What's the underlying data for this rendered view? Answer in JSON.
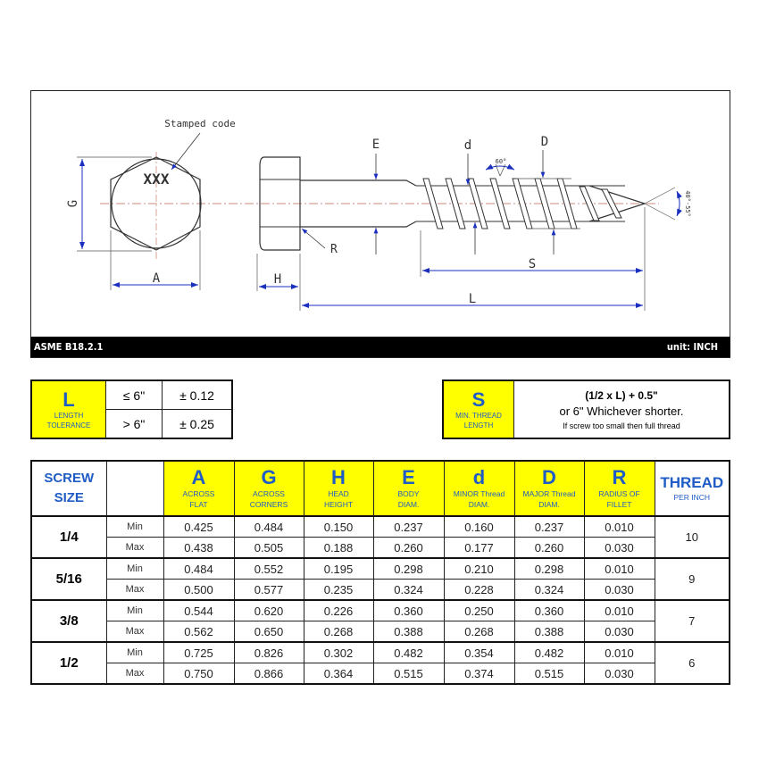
{
  "drawing": {
    "stamped_code_label": "Stamped code",
    "stamp_text": "XXX",
    "dim_labels": {
      "G": "G",
      "A": "A",
      "H": "H",
      "R": "R",
      "E": "E",
      "d": "d",
      "D": "D",
      "S": "S",
      "L": "L"
    },
    "thread_angle": "60°",
    "point_angle": "40°-55°",
    "standard": "ASME B18.2.1",
    "unit": "unit: INCH"
  },
  "length_tolerance": {
    "symbol": "L",
    "caption_line1": "LENGTH",
    "caption_line2": "TOLERANCE",
    "rows": [
      {
        "condition": "≤ 6\"",
        "tolerance": "± 0.12"
      },
      {
        "condition": "> 6\"",
        "tolerance": "± 0.25"
      }
    ]
  },
  "thread_length": {
    "symbol": "S",
    "caption_line1": "MIN. THREAD",
    "caption_line2": "LENGTH",
    "formula": "(1/2 x L) + 0.5\"",
    "line2": "or 6\" Whichever shorter.",
    "note": "If screw too small then full thread"
  },
  "spec_table": {
    "size_header_1": "SCREW",
    "size_header_2": "SIZE",
    "columns": [
      {
        "symbol": "A",
        "l1": "ACROSS",
        "l2": "FLAT"
      },
      {
        "symbol": "G",
        "l1": "ACROSS",
        "l2": "CORNERS"
      },
      {
        "symbol": "H",
        "l1": "HEAD",
        "l2": "HEIGHT"
      },
      {
        "symbol": "E",
        "l1": "BODY",
        "l2": "DIAM."
      },
      {
        "symbol": "d",
        "l1": "MINOR Thread",
        "l2": "DIAM."
      },
      {
        "symbol": "D",
        "l1": "MAJOR Thread",
        "l2": "DIAM."
      },
      {
        "symbol": "R",
        "l1": "RADIUS OF",
        "l2": "FILLET"
      }
    ],
    "thread_header": "THREAD",
    "thread_sub": "PER INCH",
    "min_label": "Min",
    "max_label": "Max",
    "rows": [
      {
        "size": "1/4",
        "min": [
          "0.425",
          "0.484",
          "0.150",
          "0.237",
          "0.160",
          "0.237",
          "0.010"
        ],
        "max": [
          "0.438",
          "0.505",
          "0.188",
          "0.260",
          "0.177",
          "0.260",
          "0.030"
        ],
        "tpi": "10"
      },
      {
        "size": "5/16",
        "min": [
          "0.484",
          "0.552",
          "0.195",
          "0.298",
          "0.210",
          "0.298",
          "0.010"
        ],
        "max": [
          "0.500",
          "0.577",
          "0.235",
          "0.324",
          "0.228",
          "0.324",
          "0.030"
        ],
        "tpi": "9"
      },
      {
        "size": "3/8",
        "min": [
          "0.544",
          "0.620",
          "0.226",
          "0.360",
          "0.250",
          "0.360",
          "0.010"
        ],
        "max": [
          "0.562",
          "0.650",
          "0.268",
          "0.388",
          "0.268",
          "0.388",
          "0.030"
        ],
        "tpi": "7"
      },
      {
        "size": "1/2",
        "min": [
          "0.725",
          "0.826",
          "0.302",
          "0.482",
          "0.354",
          "0.482",
          "0.010"
        ],
        "max": [
          "0.750",
          "0.866",
          "0.364",
          "0.515",
          "0.374",
          "0.515",
          "0.030"
        ],
        "tpi": "6"
      }
    ]
  },
  "colors": {
    "header_yellow": "#ffff00",
    "header_blue": "#1f5cc5",
    "dimension_blue": "#1a2fbf"
  }
}
